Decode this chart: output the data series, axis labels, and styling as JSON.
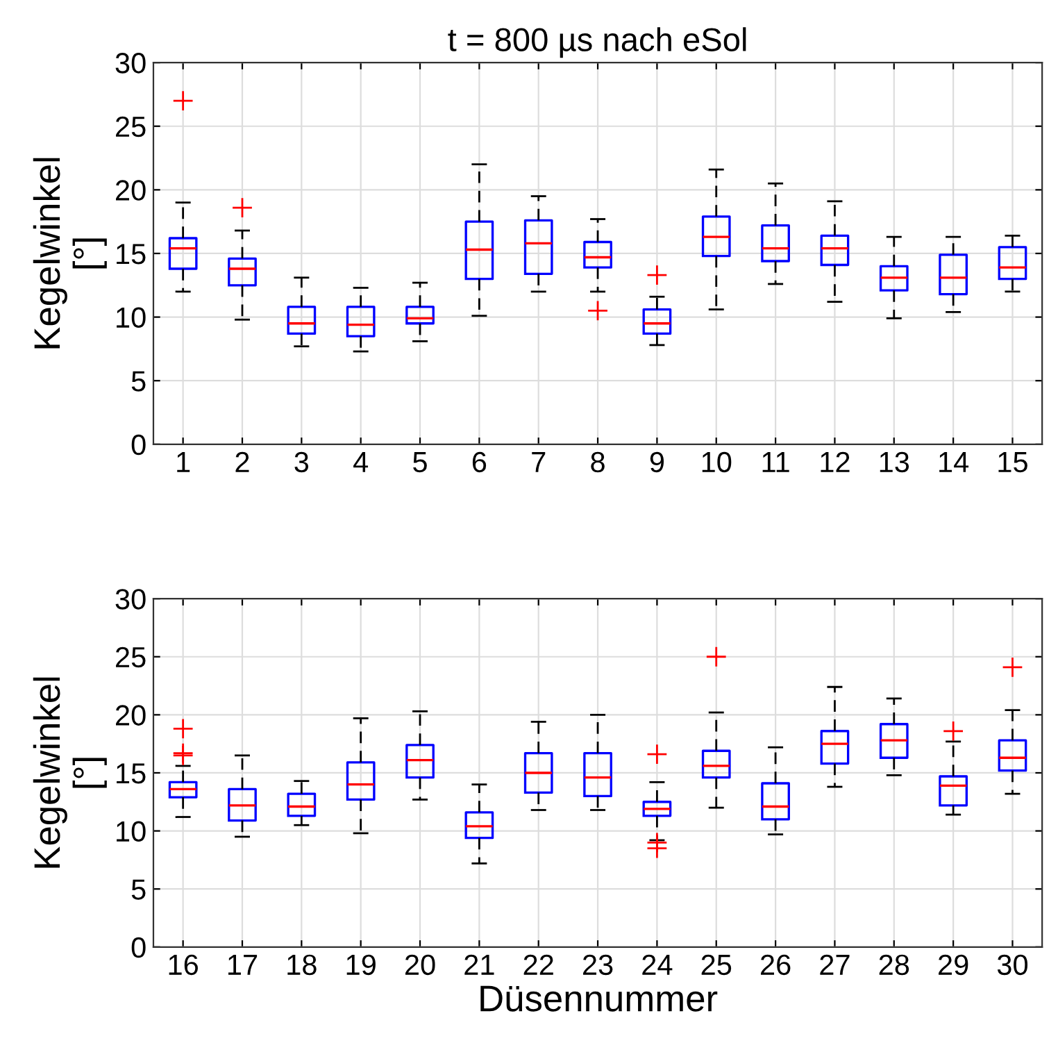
{
  "chart_data": [
    {
      "type": "box",
      "title": "t = 800 µs nach eSol",
      "ylabel": "Kegelwinkel\n[°]",
      "categories": [
        "1",
        "2",
        "3",
        "4",
        "5",
        "6",
        "7",
        "8",
        "9",
        "10",
        "11",
        "12",
        "13",
        "14",
        "15"
      ],
      "ylim": [
        0,
        30
      ],
      "yticks": [
        0,
        5,
        10,
        15,
        20,
        25,
        30
      ],
      "grid": true,
      "marker": "cross",
      "series": [
        {
          "color": "#0000ff",
          "boxes": [
            {
              "low": 12,
              "q1": 13.8,
              "median": 15.4,
              "q3": 16.2,
              "high": 19,
              "outliers": [
                27
              ]
            },
            {
              "low": 9.8,
              "q1": 12.5,
              "median": 13.8,
              "q3": 14.6,
              "high": 16.8,
              "outliers": [
                18.6
              ]
            },
            {
              "low": 7.7,
              "q1": 8.7,
              "median": 9.5,
              "q3": 10.8,
              "high": 13.1
            },
            {
              "low": 7.3,
              "q1": 8.5,
              "median": 9.4,
              "q3": 10.8,
              "high": 12.3
            },
            {
              "low": 8.1,
              "q1": 9.5,
              "median": 9.9,
              "q3": 10.8,
              "high": 12.7
            },
            {
              "low": 10.1,
              "q1": 13,
              "median": 15.3,
              "q3": 17.5,
              "high": 22
            },
            {
              "low": 12,
              "q1": 13.4,
              "median": 15.8,
              "q3": 17.6,
              "high": 19.5
            },
            {
              "low": 12,
              "q1": 13.9,
              "median": 14.7,
              "q3": 15.9,
              "high": 17.7,
              "outliers": [
                10.5
              ]
            },
            {
              "low": 7.8,
              "q1": 8.7,
              "median": 9.5,
              "q3": 10.6,
              "high": 11.6,
              "outliers": [
                13.3
              ]
            },
            {
              "low": 10.6,
              "q1": 14.8,
              "median": 16.3,
              "q3": 17.9,
              "high": 21.6
            },
            {
              "low": 12.6,
              "q1": 14.4,
              "median": 15.4,
              "q3": 17.2,
              "high": 20.5
            },
            {
              "low": 11.2,
              "q1": 14.1,
              "median": 15.4,
              "q3": 16.4,
              "high": 19.1
            },
            {
              "low": 9.9,
              "q1": 12.1,
              "median": 13.1,
              "q3": 14,
              "high": 16.3
            },
            {
              "low": 10.4,
              "q1": 11.8,
              "median": 13.1,
              "q3": 14.9,
              "high": 16.3
            },
            {
              "low": 12,
              "q1": 13,
              "median": 13.9,
              "q3": 15.5,
              "high": 16.4
            }
          ]
        }
      ]
    },
    {
      "type": "box",
      "xlabel": "Düsennummer",
      "ylabel": "Kegelwinkel\n[°]",
      "categories": [
        "16",
        "17",
        "18",
        "19",
        "20",
        "21",
        "22",
        "23",
        "24",
        "25",
        "26",
        "27",
        "28",
        "29",
        "30"
      ],
      "ylim": [
        0,
        30
      ],
      "yticks": [
        0,
        5,
        10,
        15,
        20,
        25,
        30
      ],
      "grid": true,
      "marker": "cross",
      "series": [
        {
          "color": "#0000ff",
          "boxes": [
            {
              "low": 11.2,
              "q1": 12.9,
              "median": 13.6,
              "q3": 14.2,
              "high": 15.6,
              "outliers": [
                16.5,
                16.7,
                18.8
              ]
            },
            {
              "low": 9.5,
              "q1": 10.9,
              "median": 12.2,
              "q3": 13.6,
              "high": 16.5
            },
            {
              "low": 10.5,
              "q1": 11.3,
              "median": 12.1,
              "q3": 13.2,
              "high": 14.3
            },
            {
              "low": 9.8,
              "q1": 12.7,
              "median": 14,
              "q3": 15.9,
              "high": 19.7
            },
            {
              "low": 12.7,
              "q1": 14.6,
              "median": 16.1,
              "q3": 17.4,
              "high": 20.3
            },
            {
              "low": 7.2,
              "q1": 9.4,
              "median": 10.4,
              "q3": 11.6,
              "high": 14
            },
            {
              "low": 11.8,
              "q1": 13.3,
              "median": 15,
              "q3": 16.7,
              "high": 19.4
            },
            {
              "low": 11.8,
              "q1": 13,
              "median": 14.6,
              "q3": 16.7,
              "high": 20
            },
            {
              "low": 9.2,
              "q1": 11.3,
              "median": 11.9,
              "q3": 12.5,
              "high": 14.2,
              "outliers": [
                16.6,
                9.0,
                8.5
              ]
            },
            {
              "low": 12,
              "q1": 14.6,
              "median": 15.6,
              "q3": 16.9,
              "high": 20.2,
              "outliers": [
                25
              ]
            },
            {
              "low": 9.7,
              "q1": 11,
              "median": 12.1,
              "q3": 14.1,
              "high": 17.2
            },
            {
              "low": 13.8,
              "q1": 15.8,
              "median": 17.5,
              "q3": 18.6,
              "high": 22.4
            },
            {
              "low": 14.8,
              "q1": 16.3,
              "median": 17.8,
              "q3": 19.2,
              "high": 21.4
            },
            {
              "low": 11.4,
              "q1": 12.2,
              "median": 13.9,
              "q3": 14.7,
              "high": 17.7,
              "outliers": [
                18.6
              ]
            },
            {
              "low": 13.2,
              "q1": 15.2,
              "median": 16.3,
              "q3": 17.8,
              "high": 20.4,
              "outliers": [
                24.1
              ]
            }
          ]
        }
      ]
    }
  ]
}
